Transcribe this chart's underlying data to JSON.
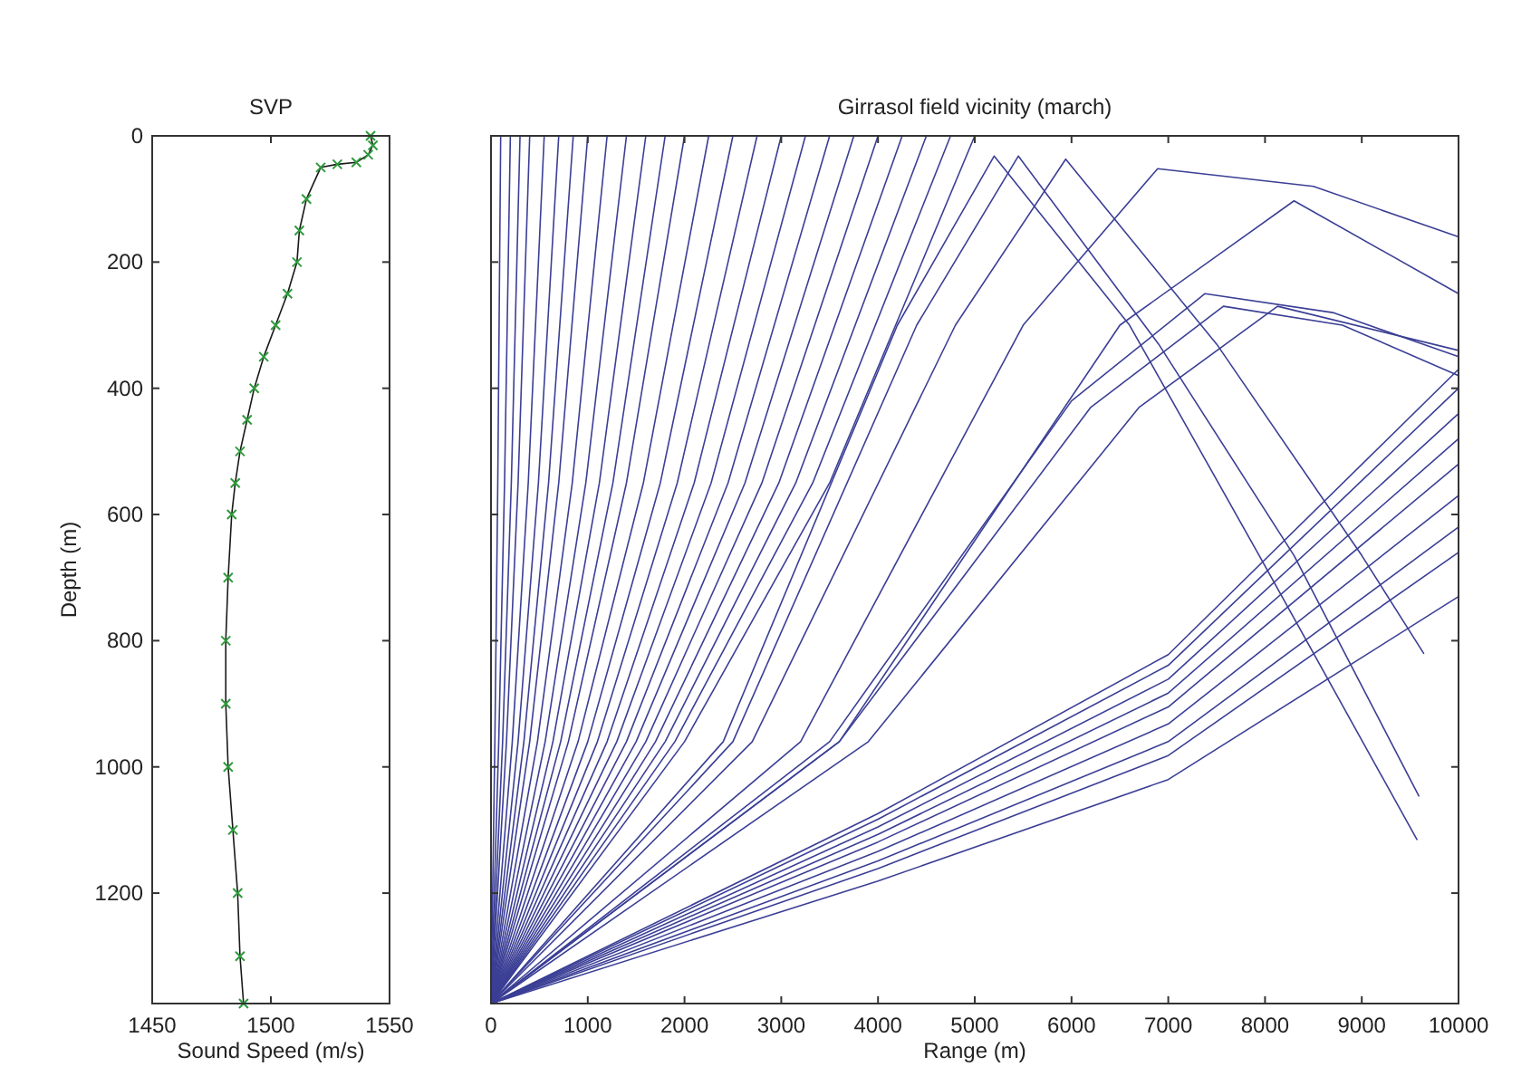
{
  "chart_data": [
    {
      "type": "line",
      "title": "SVP",
      "xlabel": "Sound Speed (m/s)",
      "ylabel": "Depth (m)",
      "xlim": [
        1450,
        1550
      ],
      "xticks": [
        1450,
        1500,
        1550
      ],
      "ylim": [
        1375,
        0
      ],
      "yticks": [
        0,
        200,
        400,
        600,
        800,
        1000,
        1200
      ],
      "series": [
        {
          "type": "line",
          "color": "#1a1a1a",
          "x": [
            1542,
            1543,
            1541,
            1536,
            1528,
            1521,
            1515,
            1512,
            1511,
            1507,
            1502,
            1497,
            1493,
            1490,
            1487,
            1485,
            1483.5,
            1482,
            1481,
            1481,
            1482,
            1484,
            1486,
            1487,
            1488.5
          ],
          "values": [
            0,
            15,
            30,
            42,
            45,
            50,
            100,
            150,
            200,
            250,
            300,
            350,
            400,
            450,
            500,
            550,
            600,
            700,
            800,
            900,
            1000,
            1100,
            1200,
            1300,
            1375
          ]
        },
        {
          "type": "scatter",
          "marker": "cross",
          "color": "#2e9a3c",
          "x": [
            1542,
            1543,
            1541,
            1536,
            1528,
            1521,
            1515,
            1512,
            1511,
            1507,
            1502,
            1497,
            1493,
            1490,
            1487,
            1485,
            1483.5,
            1482,
            1481,
            1481,
            1482,
            1484,
            1486,
            1487,
            1488.5
          ],
          "values": [
            0,
            15,
            30,
            42,
            45,
            50,
            100,
            150,
            200,
            250,
            300,
            350,
            400,
            450,
            500,
            550,
            600,
            700,
            800,
            900,
            1000,
            1100,
            1200,
            1300,
            1375
          ]
        }
      ]
    },
    {
      "type": "line",
      "title": "Girrasol field vicinity (march)",
      "xlabel": "Range (m)",
      "xlim": [
        0,
        10000
      ],
      "xticks": [
        0,
        1000,
        2000,
        3000,
        4000,
        5000,
        6000,
        7000,
        8000,
        9000,
        10000
      ],
      "ylim": [
        1375,
        0
      ],
      "yticks": [
        0,
        200,
        400,
        600,
        800,
        1000,
        1200
      ],
      "tick_labels": "x",
      "series": [
        {
          "type": "line",
          "color": "#3b3f95",
          "x": [
            0,
            40,
            70,
            100
          ],
          "values": [
            1375,
            960,
            550,
            0
          ]
        },
        {
          "type": "line",
          "color": "#3b3f95",
          "x": [
            0,
            80,
            140,
            200
          ],
          "values": [
            1375,
            960,
            550,
            0
          ]
        },
        {
          "type": "line",
          "color": "#3b3f95",
          "x": [
            0,
            120,
            210,
            300
          ],
          "values": [
            1375,
            960,
            550,
            0
          ]
        },
        {
          "type": "line",
          "color": "#3b3f95",
          "x": [
            0,
            160,
            280,
            400
          ],
          "values": [
            1375,
            960,
            550,
            0
          ]
        },
        {
          "type": "line",
          "color": "#3b3f95",
          "x": [
            0,
            220,
            385,
            550
          ],
          "values": [
            1375,
            960,
            550,
            0
          ]
        },
        {
          "type": "line",
          "color": "#3b3f95",
          "x": [
            0,
            280,
            490,
            700
          ],
          "values": [
            1375,
            960,
            550,
            0
          ]
        },
        {
          "type": "line",
          "color": "#3b3f95",
          "x": [
            0,
            340,
            595,
            850
          ],
          "values": [
            1375,
            960,
            550,
            0
          ]
        },
        {
          "type": "line",
          "color": "#3b3f95",
          "x": [
            0,
            400,
            700,
            1000
          ],
          "values": [
            1375,
            960,
            550,
            0
          ]
        },
        {
          "type": "line",
          "color": "#3b3f95",
          "x": [
            0,
            480,
            840,
            1200
          ],
          "values": [
            1375,
            960,
            550,
            0
          ]
        },
        {
          "type": "line",
          "color": "#3b3f95",
          "x": [
            0,
            560,
            980,
            1400
          ],
          "values": [
            1375,
            960,
            550,
            0
          ]
        },
        {
          "type": "line",
          "color": "#3b3f95",
          "x": [
            0,
            640,
            1120,
            1600
          ],
          "values": [
            1375,
            960,
            550,
            0
          ]
        },
        {
          "type": "line",
          "color": "#3b3f95",
          "x": [
            0,
            720,
            1260,
            1800
          ],
          "values": [
            1375,
            960,
            550,
            0
          ]
        },
        {
          "type": "line",
          "color": "#3b3f95",
          "x": [
            0,
            800,
            1400,
            2000
          ],
          "values": [
            1375,
            960,
            550,
            0
          ]
        },
        {
          "type": "line",
          "color": "#3b3f95",
          "x": [
            0,
            900,
            1575,
            2250
          ],
          "values": [
            1375,
            960,
            550,
            0
          ]
        },
        {
          "type": "line",
          "color": "#3b3f95",
          "x": [
            0,
            1000,
            1750,
            2500
          ],
          "values": [
            1375,
            960,
            550,
            0
          ]
        },
        {
          "type": "line",
          "color": "#3b3f95",
          "x": [
            0,
            1100,
            1925,
            2750
          ],
          "values": [
            1375,
            960,
            550,
            0
          ]
        },
        {
          "type": "line",
          "color": "#3b3f95",
          "x": [
            0,
            1200,
            2100,
            3000
          ],
          "values": [
            1375,
            960,
            550,
            0
          ]
        },
        {
          "type": "line",
          "color": "#3b3f95",
          "x": [
            0,
            1300,
            2275,
            3250
          ],
          "values": [
            1375,
            960,
            550,
            0
          ]
        },
        {
          "type": "line",
          "color": "#3b3f95",
          "x": [
            0,
            1400,
            2450,
            3500
          ],
          "values": [
            1375,
            960,
            550,
            0
          ]
        },
        {
          "type": "line",
          "color": "#3b3f95",
          "x": [
            0,
            1500,
            2625,
            3750
          ],
          "values": [
            1375,
            960,
            550,
            0
          ]
        },
        {
          "type": "line",
          "color": "#3b3f95",
          "x": [
            0,
            1600,
            2800,
            4000
          ],
          "values": [
            1375,
            960,
            550,
            0
          ]
        },
        {
          "type": "line",
          "color": "#3b3f95",
          "x": [
            0,
            1700,
            2975,
            4250
          ],
          "values": [
            1375,
            960,
            550,
            0
          ]
        },
        {
          "type": "line",
          "color": "#3b3f95",
          "x": [
            0,
            1800,
            3150,
            4500
          ],
          "values": [
            1375,
            960,
            550,
            0
          ]
        },
        {
          "type": "line",
          "color": "#3b3f95",
          "x": [
            0,
            1900,
            3325,
            4750
          ],
          "values": [
            1375,
            960,
            550,
            0
          ]
        },
        {
          "type": "line",
          "color": "#3b3f95",
          "x": [
            0,
            2000,
            3500,
            5000
          ],
          "values": [
            1375,
            960,
            550,
            0
          ]
        },
        {
          "type": "line",
          "color": "#3b3f95",
          "x": [
            0,
            2400,
            4200,
            5200,
            6600,
            7940,
            9570
          ],
          "values": [
            1375,
            960,
            300,
            32,
            300,
            665,
            1115
          ]
        },
        {
          "type": "line",
          "color": "#3b3f95",
          "x": [
            0,
            2500,
            4400,
            5450,
            6900,
            8300,
            9590
          ],
          "values": [
            1375,
            960,
            300,
            32,
            330,
            665,
            1046
          ]
        },
        {
          "type": "line",
          "color": "#3b3f95",
          "x": [
            0,
            2700,
            4800,
            5940,
            7500,
            9000,
            9640
          ],
          "values": [
            1375,
            960,
            300,
            37,
            330,
            665,
            820
          ]
        },
        {
          "type": "line",
          "color": "#3b3f95",
          "x": [
            0,
            3200,
            5500,
            6890,
            8500,
            10000
          ],
          "values": [
            1375,
            960,
            300,
            52,
            80,
            160
          ]
        },
        {
          "type": "line",
          "color": "#3b3f95",
          "x": [
            0,
            3600,
            6500,
            8300,
            10000
          ],
          "values": [
            1375,
            960,
            300,
            103,
            250
          ]
        },
        {
          "type": "line",
          "color": "#3b3f95",
          "x": [
            0,
            3500,
            6000,
            7380,
            8700,
            10000
          ],
          "values": [
            1375,
            960,
            420,
            250,
            280,
            350
          ]
        },
        {
          "type": "line",
          "color": "#3b3f95",
          "x": [
            0,
            3600,
            6200,
            7570,
            8800,
            10000
          ],
          "values": [
            1375,
            960,
            430,
            270,
            300,
            380
          ]
        },
        {
          "type": "line",
          "color": "#3b3f95",
          "x": [
            0,
            3900,
            6700,
            8130,
            10000
          ],
          "values": [
            1375,
            960,
            430,
            270,
            340
          ]
        },
        {
          "type": "line",
          "color": "#3b3f95",
          "x": [
            0,
            4000,
            7000,
            10000
          ],
          "values": [
            1375,
            1074,
            822,
            370
          ]
        },
        {
          "type": "line",
          "color": "#3b3f95",
          "x": [
            0,
            4000,
            7000,
            10000
          ],
          "values": [
            1375,
            1083,
            839,
            400
          ]
        },
        {
          "type": "line",
          "color": "#3b3f95",
          "x": [
            0,
            4000,
            7000,
            10000
          ],
          "values": [
            1375,
            1095,
            861,
            440
          ]
        },
        {
          "type": "line",
          "color": "#3b3f95",
          "x": [
            0,
            4000,
            7000,
            10000
          ],
          "values": [
            1375,
            1107,
            883,
            480
          ]
        },
        {
          "type": "line",
          "color": "#3b3f95",
          "x": [
            0,
            4000,
            7000,
            10000
          ],
          "values": [
            1375,
            1119,
            905,
            520
          ]
        },
        {
          "type": "line",
          "color": "#3b3f95",
          "x": [
            0,
            4000,
            7000,
            10000
          ],
          "values": [
            1375,
            1134,
            932,
            570
          ]
        },
        {
          "type": "line",
          "color": "#3b3f95",
          "x": [
            0,
            4000,
            7000,
            10000
          ],
          "values": [
            1375,
            1149,
            960,
            620
          ]
        },
        {
          "type": "line",
          "color": "#3b3f95",
          "x": [
            0,
            4000,
            7000,
            10000
          ],
          "values": [
            1375,
            1161,
            982,
            660
          ]
        },
        {
          "type": "line",
          "color": "#3b3f95",
          "x": [
            0,
            4000,
            7000,
            10000
          ],
          "values": [
            1375,
            1181,
            1020,
            730
          ]
        }
      ]
    }
  ]
}
